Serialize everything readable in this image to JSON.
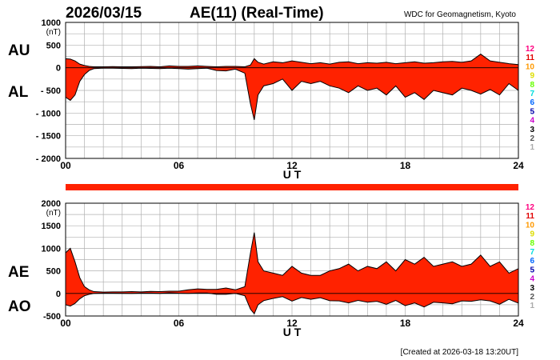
{
  "header": {
    "date": "2026/03/15",
    "title": "AE(11) (Real-Time)",
    "source": "WDC for Geomagnetism, Kyoto"
  },
  "footer": {
    "created": "[Created at 2026-03-18 13:20UT]"
  },
  "station_scale": {
    "labels": [
      "12",
      "11",
      "10",
      "9",
      "8",
      "7",
      "6",
      "5",
      "4",
      "3",
      "2",
      "1"
    ],
    "colors": [
      "#ff0080",
      "#e00000",
      "#ff9900",
      "#dddd00",
      "#66ff00",
      "#00dddd",
      "#0066ff",
      "#0000aa",
      "#cc00cc",
      "#000000",
      "#555555",
      "#aaaaaa"
    ]
  },
  "chart_data": [
    {
      "type": "area",
      "name": "AU/AL",
      "series_labels": [
        "AU",
        "AL"
      ],
      "ylabel": "(nT)",
      "xlabel": "U T",
      "xlim": [
        0,
        24
      ],
      "ylim": [
        -2000,
        1000
      ],
      "yticks": [
        1000,
        500,
        0,
        -500,
        -1000,
        -1500,
        -2000
      ],
      "ytick_labels": [
        "1000",
        "500",
        "0",
        "- 500",
        "- 1000",
        "- 1500",
        "- 2000"
      ],
      "xticks": [
        0,
        6,
        12,
        18,
        24
      ],
      "xtick_labels": [
        "00",
        "06",
        "12",
        "18",
        "24"
      ],
      "fill_color": "#ff2200",
      "grid": true,
      "x": [
        0,
        0.25,
        0.5,
        0.75,
        1,
        1.25,
        1.5,
        2,
        2.5,
        3,
        3.5,
        4,
        4.5,
        5,
        5.5,
        6,
        6.5,
        7,
        7.5,
        8,
        8.5,
        9,
        9.5,
        9.8,
        10,
        10.2,
        10.5,
        11,
        11.5,
        12,
        12.5,
        13,
        13.5,
        14,
        14.5,
        15,
        15.5,
        16,
        16.5,
        17,
        17.5,
        18,
        18.5,
        19,
        19.5,
        20,
        20.5,
        21,
        21.5,
        22,
        22.5,
        23,
        23.5,
        24
      ],
      "AU": [
        200,
        190,
        150,
        80,
        50,
        30,
        20,
        20,
        25,
        20,
        20,
        25,
        30,
        20,
        40,
        30,
        30,
        40,
        30,
        20,
        30,
        30,
        20,
        60,
        200,
        120,
        80,
        130,
        110,
        150,
        120,
        90,
        110,
        80,
        120,
        130,
        90,
        110,
        100,
        120,
        90,
        110,
        130,
        100,
        110,
        130,
        140,
        120,
        150,
        300,
        150,
        120,
        90,
        70
      ],
      "AL": [
        -650,
        -720,
        -600,
        -300,
        -150,
        -60,
        -20,
        -10,
        -10,
        -15,
        -20,
        -10,
        -15,
        -20,
        -10,
        -20,
        -30,
        -20,
        -10,
        -60,
        -70,
        -30,
        -120,
        -800,
        -1150,
        -600,
        -400,
        -350,
        -250,
        -500,
        -300,
        -350,
        -300,
        -400,
        -450,
        -550,
        -400,
        -500,
        -450,
        -600,
        -400,
        -650,
        -550,
        -700,
        -500,
        -550,
        -600,
        -450,
        -500,
        -580,
        -480,
        -600,
        -350,
        -500
      ]
    },
    {
      "type": "area",
      "name": "AE/AO",
      "series_labels": [
        "AE",
        "AO"
      ],
      "ylabel": "(nT)",
      "xlabel": "U T",
      "xlim": [
        0,
        24
      ],
      "ylim": [
        -500,
        2000
      ],
      "yticks": [
        2000,
        1500,
        1000,
        500,
        0,
        -500
      ],
      "ytick_labels": [
        "2000",
        "1500",
        "1000",
        "500",
        "0",
        "-500"
      ],
      "xticks": [
        0,
        6,
        12,
        18,
        24
      ],
      "xtick_labels": [
        "00",
        "06",
        "12",
        "18",
        "24"
      ],
      "fill_color": "#ff2200",
      "grid": true,
      "x": [
        0,
        0.25,
        0.5,
        0.75,
        1,
        1.25,
        1.5,
        2,
        2.5,
        3,
        3.5,
        4,
        4.5,
        5,
        5.5,
        6,
        6.5,
        7,
        7.5,
        8,
        8.5,
        9,
        9.5,
        9.8,
        10,
        10.2,
        10.5,
        11,
        11.5,
        12,
        12.5,
        13,
        13.5,
        14,
        14.5,
        15,
        15.5,
        16,
        16.5,
        17,
        17.5,
        18,
        18.5,
        19,
        19.5,
        20,
        20.5,
        21,
        21.5,
        22,
        22.5,
        23,
        23.5,
        24
      ],
      "AE": [
        900,
        1000,
        700,
        350,
        150,
        80,
        40,
        30,
        35,
        35,
        40,
        35,
        45,
        40,
        50,
        50,
        80,
        100,
        90,
        90,
        120,
        80,
        150,
        900,
        1350,
        700,
        500,
        450,
        400,
        600,
        450,
        400,
        400,
        500,
        550,
        650,
        500,
        600,
        550,
        700,
        500,
        750,
        650,
        800,
        600,
        650,
        700,
        600,
        650,
        850,
        600,
        700,
        450,
        550
      ],
      "AO": [
        -250,
        -280,
        -220,
        -120,
        -50,
        -20,
        0,
        5,
        5,
        3,
        0,
        8,
        8,
        0,
        15,
        5,
        0,
        10,
        10,
        -20,
        -20,
        0,
        -50,
        -350,
        -450,
        -250,
        -160,
        -110,
        -70,
        -170,
        -90,
        -130,
        -95,
        -160,
        -165,
        -210,
        -155,
        -195,
        -175,
        -240,
        -155,
        -270,
        -210,
        -300,
        -195,
        -210,
        -230,
        -165,
        -175,
        -140,
        -165,
        -240,
        -130,
        -215
      ]
    }
  ]
}
